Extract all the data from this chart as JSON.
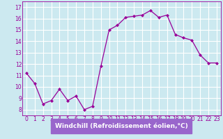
{
  "x": [
    0,
    1,
    2,
    3,
    4,
    5,
    6,
    7,
    8,
    9,
    10,
    11,
    12,
    13,
    14,
    15,
    16,
    17,
    18,
    19,
    20,
    21,
    22,
    23
  ],
  "y": [
    11.2,
    10.3,
    8.5,
    8.8,
    9.8,
    8.8,
    9.2,
    8.0,
    8.3,
    11.8,
    15.0,
    15.4,
    16.1,
    16.2,
    16.3,
    16.7,
    16.1,
    16.3,
    14.6,
    14.3,
    14.1,
    12.8,
    12.1,
    12.1
  ],
  "line_color": "#990099",
  "marker": "D",
  "marker_size": 2,
  "bg_color": "#cce9f0",
  "grid_color": "#ffffff",
  "xlabel": "Windchill (Refroidissement éolien,°C)",
  "xlabel_color": "#990099",
  "xlabel_bg": "#9966cc",
  "tick_color": "#990099",
  "ylim": [
    7.5,
    17.5
  ],
  "xlim": [
    -0.5,
    23.5
  ],
  "yticks": [
    8,
    9,
    10,
    11,
    12,
    13,
    14,
    15,
    16,
    17
  ],
  "xticks": [
    0,
    1,
    2,
    3,
    4,
    5,
    6,
    7,
    8,
    9,
    10,
    11,
    12,
    13,
    14,
    15,
    16,
    17,
    18,
    19,
    20,
    21,
    22,
    23
  ],
  "tick_fontsize": 5.5,
  "xlabel_fontsize": 6.5
}
